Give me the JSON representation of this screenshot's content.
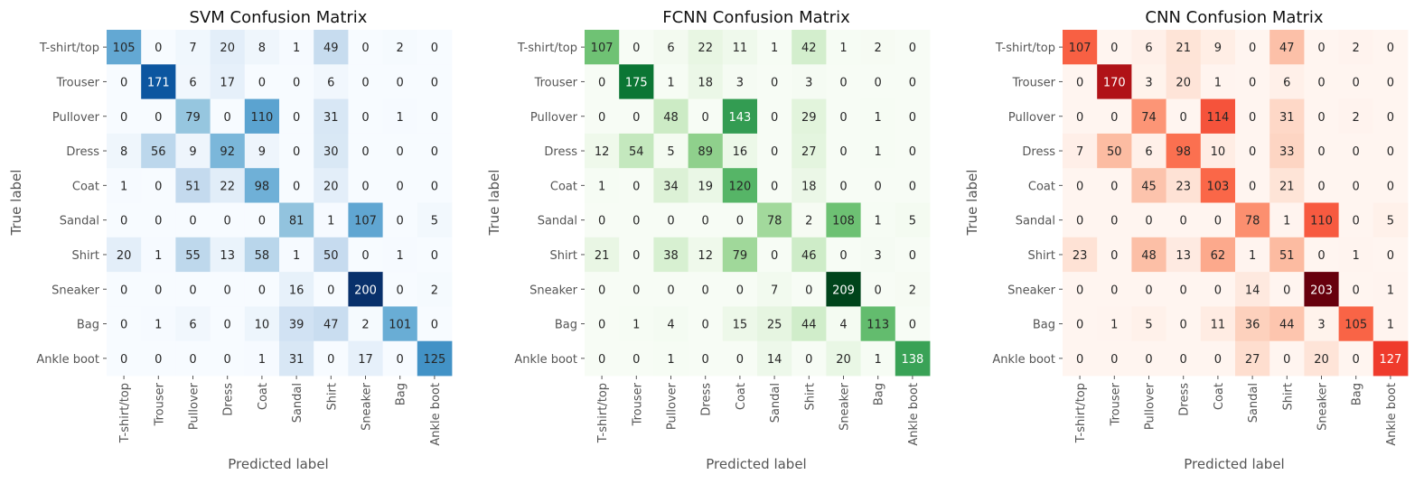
{
  "chart_data": [
    {
      "type": "heatmap",
      "title": "SVM Confusion Matrix",
      "xlabel": "Predicted label",
      "ylabel": "True label",
      "colormap": "Blues",
      "color_low": "#f7fbff",
      "color_high": "#08306b",
      "categories": [
        "T-shirt/top",
        "Trouser",
        "Pullover",
        "Dress",
        "Coat",
        "Sandal",
        "Shirt",
        "Sneaker",
        "Bag",
        "Ankle boot"
      ],
      "matrix": [
        [
          105,
          0,
          7,
          20,
          8,
          1,
          49,
          0,
          2,
          0
        ],
        [
          0,
          171,
          6,
          17,
          0,
          0,
          6,
          0,
          0,
          0
        ],
        [
          0,
          0,
          79,
          0,
          110,
          0,
          31,
          0,
          1,
          0
        ],
        [
          8,
          56,
          9,
          92,
          9,
          0,
          30,
          0,
          0,
          0
        ],
        [
          1,
          0,
          51,
          22,
          98,
          0,
          20,
          0,
          0,
          0
        ],
        [
          0,
          0,
          0,
          0,
          0,
          81,
          1,
          107,
          0,
          5
        ],
        [
          20,
          1,
          55,
          13,
          58,
          1,
          50,
          0,
          1,
          0
        ],
        [
          0,
          0,
          0,
          0,
          0,
          16,
          0,
          200,
          0,
          2
        ],
        [
          0,
          1,
          6,
          0,
          10,
          39,
          47,
          2,
          101,
          0
        ],
        [
          0,
          0,
          0,
          0,
          1,
          31,
          0,
          17,
          0,
          125
        ]
      ]
    },
    {
      "type": "heatmap",
      "title": "FCNN Confusion Matrix",
      "xlabel": "Predicted label",
      "ylabel": "True label",
      "colormap": "Greens",
      "color_low": "#f7fcf5",
      "color_high": "#00441b",
      "categories": [
        "T-shirt/top",
        "Trouser",
        "Pullover",
        "Dress",
        "Coat",
        "Sandal",
        "Shirt",
        "Sneaker",
        "Bag",
        "Ankle boot"
      ],
      "matrix": [
        [
          107,
          0,
          6,
          22,
          11,
          1,
          42,
          1,
          2,
          0
        ],
        [
          0,
          175,
          1,
          18,
          3,
          0,
          3,
          0,
          0,
          0
        ],
        [
          0,
          0,
          48,
          0,
          143,
          0,
          29,
          0,
          1,
          0
        ],
        [
          12,
          54,
          5,
          89,
          16,
          0,
          27,
          0,
          1,
          0
        ],
        [
          1,
          0,
          34,
          19,
          120,
          0,
          18,
          0,
          0,
          0
        ],
        [
          0,
          0,
          0,
          0,
          0,
          78,
          2,
          108,
          1,
          5
        ],
        [
          21,
          0,
          38,
          12,
          79,
          0,
          46,
          0,
          3,
          0
        ],
        [
          0,
          0,
          0,
          0,
          0,
          7,
          0,
          209,
          0,
          2
        ],
        [
          0,
          1,
          4,
          0,
          15,
          25,
          44,
          4,
          113,
          0
        ],
        [
          0,
          0,
          1,
          0,
          0,
          14,
          0,
          20,
          1,
          138
        ]
      ]
    },
    {
      "type": "heatmap",
      "title": "CNN Confusion Matrix",
      "xlabel": "Predicted label",
      "ylabel": "True label",
      "colormap": "Reds",
      "color_low": "#fff5f0",
      "color_high": "#67000d",
      "categories": [
        "T-shirt/top",
        "Trouser",
        "Pullover",
        "Dress",
        "Coat",
        "Sandal",
        "Shirt",
        "Sneaker",
        "Bag",
        "Ankle boot"
      ],
      "matrix": [
        [
          107,
          0,
          6,
          21,
          9,
          0,
          47,
          0,
          2,
          0
        ],
        [
          0,
          170,
          3,
          20,
          1,
          0,
          6,
          0,
          0,
          0
        ],
        [
          0,
          0,
          74,
          0,
          114,
          0,
          31,
          0,
          2,
          0
        ],
        [
          7,
          50,
          6,
          98,
          10,
          0,
          33,
          0,
          0,
          0
        ],
        [
          0,
          0,
          45,
          23,
          103,
          0,
          21,
          0,
          0,
          0
        ],
        [
          0,
          0,
          0,
          0,
          0,
          78,
          1,
          110,
          0,
          5
        ],
        [
          23,
          0,
          48,
          13,
          62,
          1,
          51,
          0,
          1,
          0
        ],
        [
          0,
          0,
          0,
          0,
          0,
          14,
          0,
          203,
          0,
          1
        ],
        [
          0,
          1,
          5,
          0,
          11,
          36,
          44,
          3,
          105,
          1
        ],
        [
          0,
          0,
          0,
          0,
          0,
          27,
          0,
          20,
          0,
          127
        ]
      ]
    }
  ]
}
